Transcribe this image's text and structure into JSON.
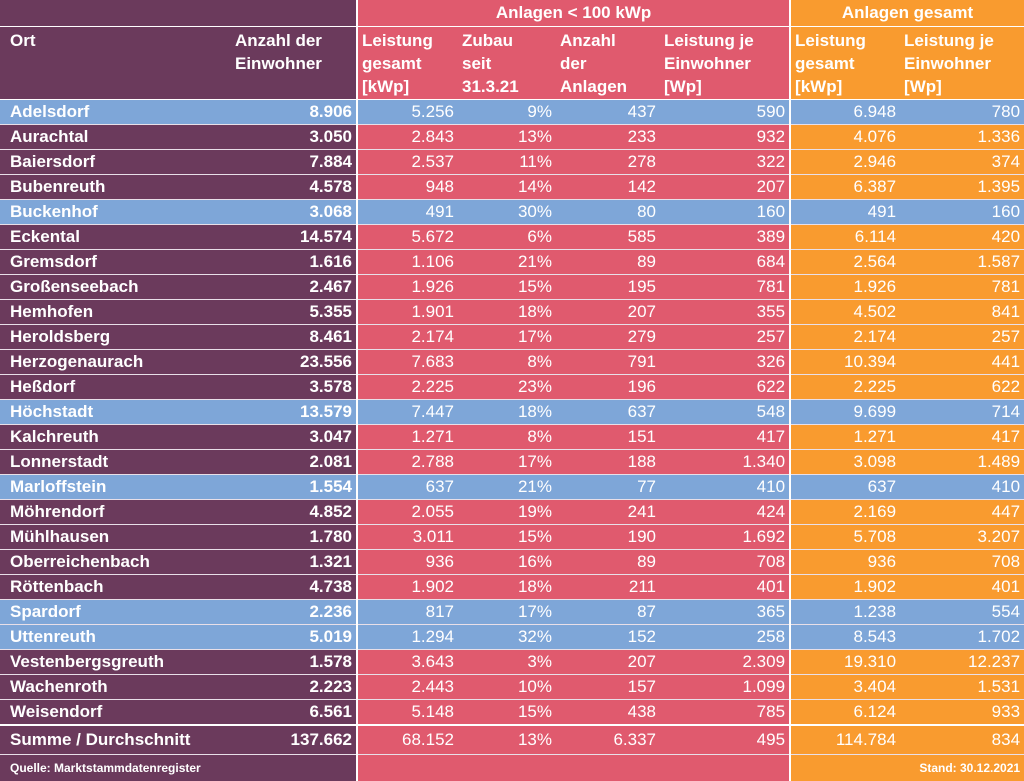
{
  "group_headers": {
    "red": "Anlagen < 100 kWp",
    "orange": "Anlagen gesamt"
  },
  "column_headers": {
    "ort": "Ort",
    "einwohner": [
      "Anzahl der",
      "Einwohner"
    ],
    "leistung": [
      "Leistung",
      "gesamt",
      "[kWp]"
    ],
    "zubau": [
      "Zubau",
      "seit",
      "31.3.21"
    ],
    "anlagen": [
      "Anzahl",
      "der",
      "Anlagen"
    ],
    "leistung_je": [
      "Leistung je",
      "Einwohner",
      "[Wp]"
    ],
    "ges_leistung": [
      "Leistung",
      "gesamt",
      "[kWp]"
    ],
    "ges_je": [
      "Leistung je",
      "Einwohner",
      "[Wp]"
    ]
  },
  "rows": [
    {
      "ort": "Adelsdorf",
      "einwohner": "8.906",
      "leistung": "5.256",
      "zubau": "9%",
      "anlagen": "437",
      "je": "590",
      "ges_leistung": "6.948",
      "ges_je": "780",
      "highlight": true
    },
    {
      "ort": "Aurachtal",
      "einwohner": "3.050",
      "leistung": "2.843",
      "zubau": "13%",
      "anlagen": "233",
      "je": "932",
      "ges_leistung": "4.076",
      "ges_je": "1.336",
      "highlight": false
    },
    {
      "ort": "Baiersdorf",
      "einwohner": "7.884",
      "leistung": "2.537",
      "zubau": "11%",
      "anlagen": "278",
      "je": "322",
      "ges_leistung": "2.946",
      "ges_je": "374",
      "highlight": false
    },
    {
      "ort": "Bubenreuth",
      "einwohner": "4.578",
      "leistung": "948",
      "zubau": "14%",
      "anlagen": "142",
      "je": "207",
      "ges_leistung": "6.387",
      "ges_je": "1.395",
      "highlight": false
    },
    {
      "ort": "Buckenhof",
      "einwohner": "3.068",
      "leistung": "491",
      "zubau": "30%",
      "anlagen": "80",
      "je": "160",
      "ges_leistung": "491",
      "ges_je": "160",
      "highlight": true
    },
    {
      "ort": "Eckental",
      "einwohner": "14.574",
      "leistung": "5.672",
      "zubau": "6%",
      "anlagen": "585",
      "je": "389",
      "ges_leistung": "6.114",
      "ges_je": "420",
      "highlight": false
    },
    {
      "ort": "Gremsdorf",
      "einwohner": "1.616",
      "leistung": "1.106",
      "zubau": "21%",
      "anlagen": "89",
      "je": "684",
      "ges_leistung": "2.564",
      "ges_je": "1.587",
      "highlight": false
    },
    {
      "ort": "Großenseebach",
      "einwohner": "2.467",
      "leistung": "1.926",
      "zubau": "15%",
      "anlagen": "195",
      "je": "781",
      "ges_leistung": "1.926",
      "ges_je": "781",
      "highlight": false
    },
    {
      "ort": "Hemhofen",
      "einwohner": "5.355",
      "leistung": "1.901",
      "zubau": "18%",
      "anlagen": "207",
      "je": "355",
      "ges_leistung": "4.502",
      "ges_je": "841",
      "highlight": false
    },
    {
      "ort": "Heroldsberg",
      "einwohner": "8.461",
      "leistung": "2.174",
      "zubau": "17%",
      "anlagen": "279",
      "je": "257",
      "ges_leistung": "2.174",
      "ges_je": "257",
      "highlight": false
    },
    {
      "ort": "Herzogenaurach",
      "einwohner": "23.556",
      "leistung": "7.683",
      "zubau": "8%",
      "anlagen": "791",
      "je": "326",
      "ges_leistung": "10.394",
      "ges_je": "441",
      "highlight": false
    },
    {
      "ort": "Heßdorf",
      "einwohner": "3.578",
      "leistung": "2.225",
      "zubau": "23%",
      "anlagen": "196",
      "je": "622",
      "ges_leistung": "2.225",
      "ges_je": "622",
      "highlight": false
    },
    {
      "ort": "Höchstadt",
      "einwohner": "13.579",
      "leistung": "7.447",
      "zubau": "18%",
      "anlagen": "637",
      "je": "548",
      "ges_leistung": "9.699",
      "ges_je": "714",
      "highlight": true
    },
    {
      "ort": "Kalchreuth",
      "einwohner": "3.047",
      "leistung": "1.271",
      "zubau": "8%",
      "anlagen": "151",
      "je": "417",
      "ges_leistung": "1.271",
      "ges_je": "417",
      "highlight": false
    },
    {
      "ort": "Lonnerstadt",
      "einwohner": "2.081",
      "leistung": "2.788",
      "zubau": "17%",
      "anlagen": "188",
      "je": "1.340",
      "ges_leistung": "3.098",
      "ges_je": "1.489",
      "highlight": false
    },
    {
      "ort": "Marloffstein",
      "einwohner": "1.554",
      "leistung": "637",
      "zubau": "21%",
      "anlagen": "77",
      "je": "410",
      "ges_leistung": "637",
      "ges_je": "410",
      "highlight": true
    },
    {
      "ort": "Möhrendorf",
      "einwohner": "4.852",
      "leistung": "2.055",
      "zubau": "19%",
      "anlagen": "241",
      "je": "424",
      "ges_leistung": "2.169",
      "ges_je": "447",
      "highlight": false
    },
    {
      "ort": "Mühlhausen",
      "einwohner": "1.780",
      "leistung": "3.011",
      "zubau": "15%",
      "anlagen": "190",
      "je": "1.692",
      "ges_leistung": "5.708",
      "ges_je": "3.207",
      "highlight": false
    },
    {
      "ort": "Oberreichenbach",
      "einwohner": "1.321",
      "leistung": "936",
      "zubau": "16%",
      "anlagen": "89",
      "je": "708",
      "ges_leistung": "936",
      "ges_je": "708",
      "highlight": false
    },
    {
      "ort": "Röttenbach",
      "einwohner": "4.738",
      "leistung": "1.902",
      "zubau": "18%",
      "anlagen": "211",
      "je": "401",
      "ges_leistung": "1.902",
      "ges_je": "401",
      "highlight": false
    },
    {
      "ort": "Spardorf",
      "einwohner": "2.236",
      "leistung": "817",
      "zubau": "17%",
      "anlagen": "87",
      "je": "365",
      "ges_leistung": "1.238",
      "ges_je": "554",
      "highlight": true
    },
    {
      "ort": "Uttenreuth",
      "einwohner": "5.019",
      "leistung": "1.294",
      "zubau": "32%",
      "anlagen": "152",
      "je": "258",
      "ges_leistung": "8.543",
      "ges_je": "1.702",
      "highlight": true
    },
    {
      "ort": "Vestenbergsgreuth",
      "einwohner": "1.578",
      "leistung": "3.643",
      "zubau": "3%",
      "anlagen": "207",
      "je": "2.309",
      "ges_leistung": "19.310",
      "ges_je": "12.237",
      "highlight": false
    },
    {
      "ort": "Wachenroth",
      "einwohner": "2.223",
      "leistung": "2.443",
      "zubau": "10%",
      "anlagen": "157",
      "je": "1.099",
      "ges_leistung": "3.404",
      "ges_je": "1.531",
      "highlight": false
    },
    {
      "ort": "Weisendorf",
      "einwohner": "6.561",
      "leistung": "5.148",
      "zubau": "15%",
      "anlagen": "438",
      "je": "785",
      "ges_leistung": "6.124",
      "ges_je": "933",
      "highlight": false
    }
  ],
  "summary": {
    "ort": "Summe / Durchschnitt",
    "einwohner": "137.662",
    "leistung": "68.152",
    "zubau": "13%",
    "anlagen": "6.337",
    "je": "495",
    "ges_leistung": "114.784",
    "ges_je": "834"
  },
  "footer": {
    "source": "Quelle: Marktstammdatenregister",
    "stand": "Stand: 30.12.2021"
  },
  "colors": {
    "purple": "#6b3a5c",
    "red": "#e05a6e",
    "orange": "#f99b2f",
    "blue_highlight": "#7ea6d8"
  }
}
